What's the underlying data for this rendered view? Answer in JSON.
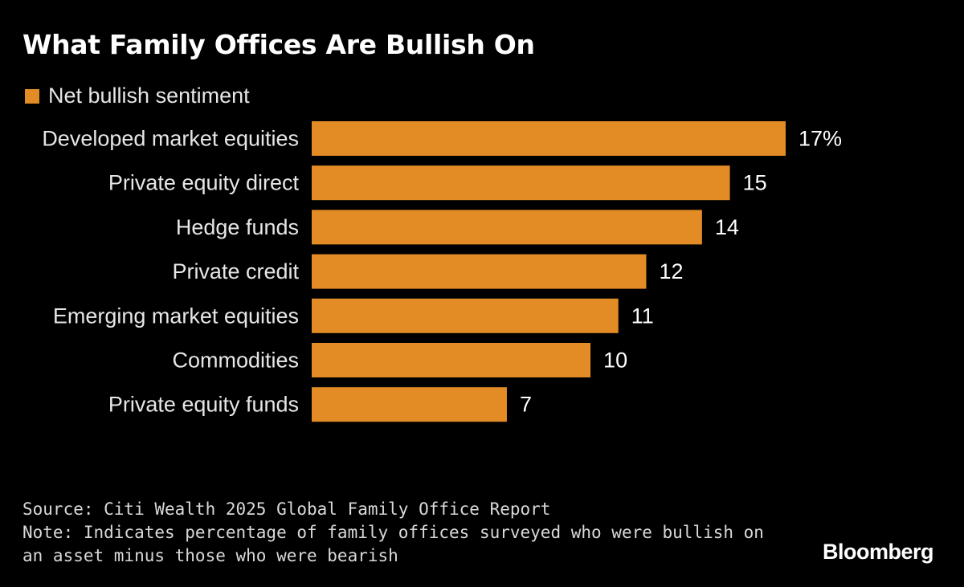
{
  "title": "What Family Offices Are Bullish On",
  "legend": {
    "label": "Net bullish sentiment"
  },
  "colors": {
    "bar": "#E38B24",
    "background": "#000000",
    "text": "#FFFFFF"
  },
  "chart_data": {
    "type": "bar",
    "orientation": "horizontal",
    "title": "What Family Offices Are Bullish On",
    "categories": [
      "Developed market equities",
      "Private equity direct",
      "Hedge funds",
      "Private credit",
      "Emerging market equities",
      "Commodities",
      "Private equity funds"
    ],
    "series": [
      {
        "name": "Net bullish sentiment",
        "values": [
          17,
          15,
          14,
          12,
          11,
          10,
          7
        ]
      }
    ],
    "value_labels": [
      "17%",
      "15",
      "14",
      "12",
      "11",
      "10",
      "7"
    ],
    "xlim": [
      0,
      17
    ],
    "xlabel": "",
    "ylabel": "",
    "grid": false,
    "legend_position": "top-left"
  },
  "footer": {
    "source": "Source: Citi Wealth 2025 Global Family Office Report",
    "note_line1": "Note: Indicates percentage of family offices surveyed who were bullish on",
    "note_line2": "an asset minus those who were bearish"
  },
  "brand": "Bloomberg"
}
